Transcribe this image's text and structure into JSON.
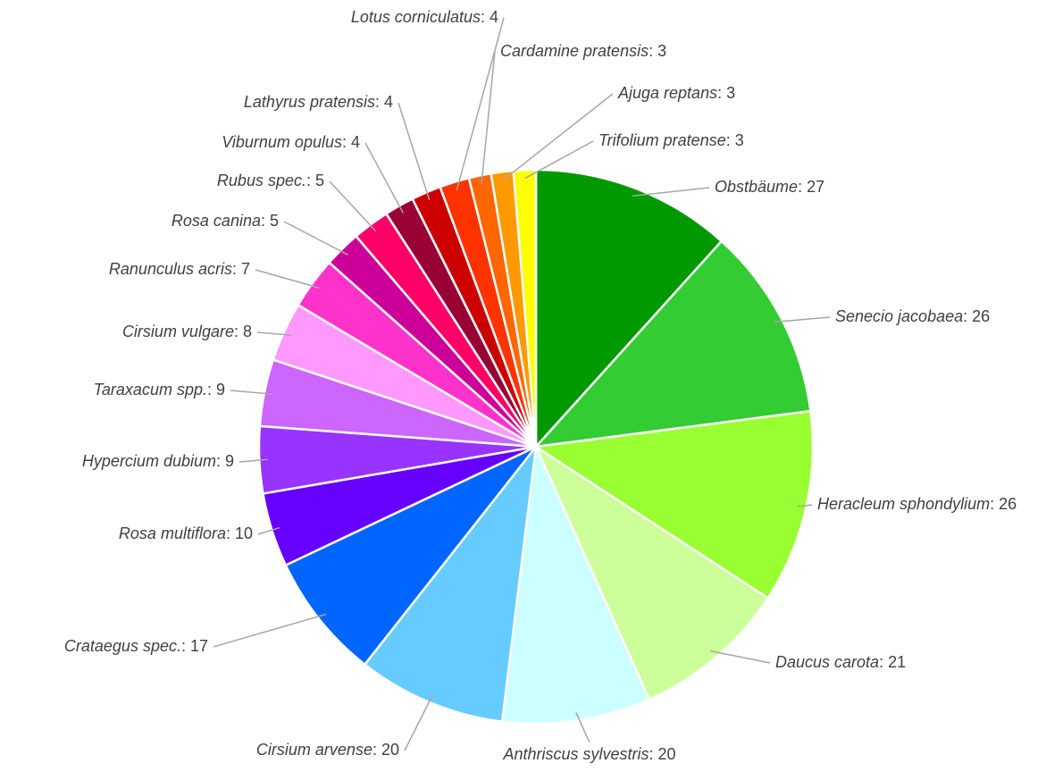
{
  "chart_data": {
    "type": "pie",
    "categories": [
      "Obstbäume",
      "Senecio jacobaea",
      "Heracleum sphondylium",
      "Daucus carota",
      "Anthriscus sylvestris",
      "Cirsium arvense",
      "Crataegus spec.",
      "Rosa multiflora",
      "Hypercium dubium",
      "Taraxacum spp.",
      "Cirsium vulgare",
      "Ranunculus acris",
      "Rosa canina",
      "Rubus spec.",
      "Viburnum opulus",
      "Lathyrus pratensis",
      "Lotus corniculatus",
      "Cardamine pratensis",
      "Ajuga reptans",
      "Trifolium pratense"
    ],
    "values": [
      27,
      26,
      26,
      21,
      20,
      20,
      17,
      10,
      9,
      9,
      8,
      7,
      5,
      5,
      4,
      4,
      4,
      3,
      3,
      3
    ],
    "value_labels": [
      ": 27",
      ": 26",
      ": 26",
      ": 21",
      ": 20",
      ": 20",
      ": 17",
      ": 10",
      ": 9",
      ": 9",
      ": 8",
      ": 7",
      ": 5",
      ": 5",
      ": 4",
      ": 4",
      ": 4",
      ": 3",
      ": 3",
      ": 3"
    ],
    "colors": [
      "#009900",
      "#33cc33",
      "#99ff33",
      "#ccff99",
      "#ccffff",
      "#66ccff",
      "#0066ff",
      "#6600ff",
      "#9933ff",
      "#cc66ff",
      "#ff99ff",
      "#ff33cc",
      "#cc0099",
      "#ff0066",
      "#990033",
      "#cc0000",
      "#ff3300",
      "#ff6600",
      "#ff9900",
      "#ffff00"
    ]
  }
}
